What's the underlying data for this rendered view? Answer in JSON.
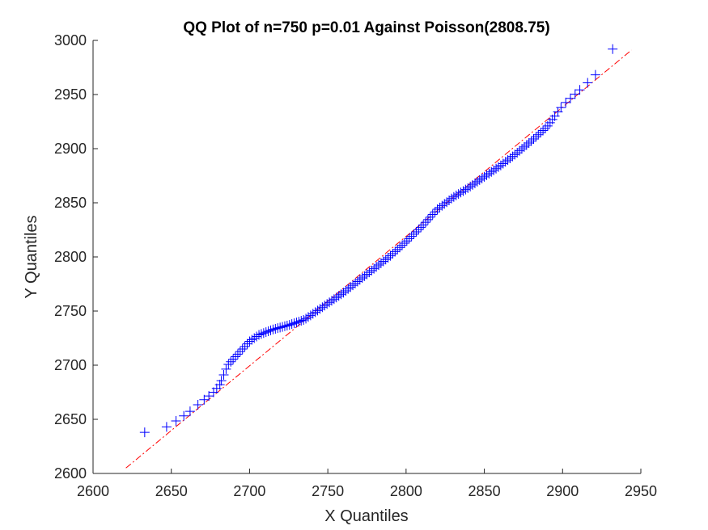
{
  "colors": {
    "marker": "#0000ff",
    "refline": "#ff0000",
    "axis": "#262626"
  },
  "chart_data": {
    "type": "scatter",
    "title": "QQ Plot of n=750 p=0.01 Against Poisson(2808.75)",
    "xlabel": "X Quantiles",
    "ylabel": "Y Quantiles",
    "xlim": [
      2600,
      2950
    ],
    "ylim": [
      2600,
      3000
    ],
    "xticks": [
      "2600",
      "2650",
      "2700",
      "2750",
      "2800",
      "2850",
      "2900",
      "2950"
    ],
    "yticks": [
      "2600",
      "2650",
      "2700",
      "2750",
      "2800",
      "2850",
      "2900",
      "2950",
      "3000"
    ],
    "grid": false,
    "legend": "none",
    "marker": "+",
    "reference_line": {
      "style": "dash-dot",
      "x": [
        2621,
        2944
      ],
      "y": [
        2605,
        2991
      ]
    },
    "curve_knots": {
      "x": [
        2633,
        2647,
        2660,
        2670,
        2677,
        2681,
        2686,
        2693,
        2700,
        2706,
        2715,
        2725,
        2735,
        2745,
        2760,
        2775,
        2790,
        2800,
        2810,
        2820,
        2830,
        2840,
        2850,
        2860,
        2870,
        2880,
        2890,
        2895,
        2900,
        2910,
        2920,
        2932
      ],
      "y": [
        2638,
        2643,
        2655,
        2667,
        2675,
        2682,
        2700,
        2711,
        2722,
        2728,
        2733,
        2737,
        2742,
        2752,
        2767,
        2784,
        2801,
        2814,
        2828,
        2844,
        2855,
        2864,
        2874,
        2884,
        2895,
        2907,
        2920,
        2930,
        2940,
        2953,
        2966,
        2992
      ]
    }
  }
}
